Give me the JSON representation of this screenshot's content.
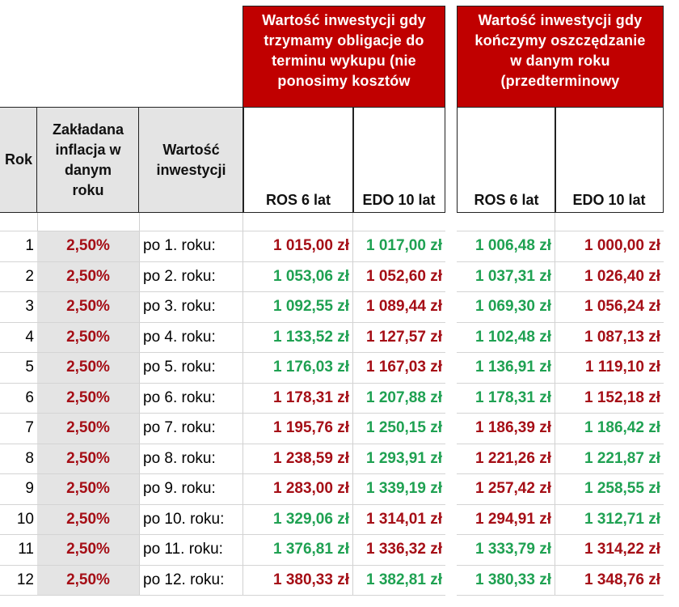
{
  "colors": {
    "header_red": "#c00000",
    "value_red": "#a50e16",
    "value_green": "#1fa152",
    "header_grey": "#e4e4e4"
  },
  "groups": [
    {
      "title": "Wartość inwestycji gdy trzymamy obligacje  do terminu wykupu (nie ponosimy kosztów",
      "lines": [
        "Wartość inwestycji gdy",
        "trzymamy obligacje  do",
        "terminu wykupu (nie",
        "ponosimy kosztów"
      ]
    },
    {
      "title": "Wartość inwestycji gdy kończymy oszczędzanie w danym roku (przedterminowy",
      "lines": [
        "Wartość inwestycji gdy",
        "kończymy oszczędzanie",
        "w danym roku",
        "(przedterminowy"
      ]
    }
  ],
  "headers": {
    "rok": "Rok",
    "inflacja": [
      "Zakładana",
      "inflacja w",
      "danym",
      "roku"
    ],
    "wartosc": [
      "Wartość",
      "inwestycji"
    ],
    "ros1": "ROS 6 lat",
    "edo1": "EDO 10 lat",
    "ros2": "ROS 6 lat",
    "edo2": "EDO 10 lat"
  },
  "rows": [
    {
      "rok": "1",
      "inflacja": "2,50%",
      "label": "po 1. roku:",
      "ros1": {
        "v": "1 015,00 zł",
        "c": "red"
      },
      "edo1": {
        "v": "1 017,00 zł",
        "c": "green"
      },
      "ros2": {
        "v": "1 006,48 zł",
        "c": "green"
      },
      "edo2": {
        "v": "1 000,00 zł",
        "c": "red"
      }
    },
    {
      "rok": "2",
      "inflacja": "2,50%",
      "label": "po 2. roku:",
      "ros1": {
        "v": "1 053,06 zł",
        "c": "green"
      },
      "edo1": {
        "v": "1 052,60 zł",
        "c": "red"
      },
      "ros2": {
        "v": "1 037,31 zł",
        "c": "green"
      },
      "edo2": {
        "v": "1 026,40 zł",
        "c": "red"
      }
    },
    {
      "rok": "3",
      "inflacja": "2,50%",
      "label": "po 3. roku:",
      "ros1": {
        "v": "1 092,55 zł",
        "c": "green"
      },
      "edo1": {
        "v": "1 089,44 zł",
        "c": "red"
      },
      "ros2": {
        "v": "1 069,30 zł",
        "c": "green"
      },
      "edo2": {
        "v": "1 056,24 zł",
        "c": "red"
      }
    },
    {
      "rok": "4",
      "inflacja": "2,50%",
      "label": "po 4. roku:",
      "ros1": {
        "v": "1 133,52 zł",
        "c": "green"
      },
      "edo1": {
        "v": "1 127,57 zł",
        "c": "red"
      },
      "ros2": {
        "v": "1 102,48 zł",
        "c": "green"
      },
      "edo2": {
        "v": "1 087,13 zł",
        "c": "red"
      }
    },
    {
      "rok": "5",
      "inflacja": "2,50%",
      "label": "po 5. roku:",
      "ros1": {
        "v": "1 176,03 zł",
        "c": "green"
      },
      "edo1": {
        "v": "1 167,03 zł",
        "c": "red"
      },
      "ros2": {
        "v": "1 136,91 zł",
        "c": "green"
      },
      "edo2": {
        "v": "1 119,10 zł",
        "c": "red"
      }
    },
    {
      "rok": "6",
      "inflacja": "2,50%",
      "label": "po 6. roku:",
      "ros1": {
        "v": "1 178,31 zł",
        "c": "red"
      },
      "edo1": {
        "v": "1 207,88 zł",
        "c": "green"
      },
      "ros2": {
        "v": "1 178,31 zł",
        "c": "green"
      },
      "edo2": {
        "v": "1 152,18 zł",
        "c": "red"
      }
    },
    {
      "rok": "7",
      "inflacja": "2,50%",
      "label": "po 7. roku:",
      "ros1": {
        "v": "1 195,76 zł",
        "c": "red"
      },
      "edo1": {
        "v": "1 250,15 zł",
        "c": "green"
      },
      "ros2": {
        "v": "1 186,39 zł",
        "c": "red"
      },
      "edo2": {
        "v": "1 186,42 zł",
        "c": "green"
      }
    },
    {
      "rok": "8",
      "inflacja": "2,50%",
      "label": "po 8. roku:",
      "ros1": {
        "v": "1 238,59 zł",
        "c": "red"
      },
      "edo1": {
        "v": "1 293,91 zł",
        "c": "green"
      },
      "ros2": {
        "v": "1 221,26 zł",
        "c": "red"
      },
      "edo2": {
        "v": "1 221,87 zł",
        "c": "green"
      }
    },
    {
      "rok": "9",
      "inflacja": "2,50%",
      "label": "po 9. roku:",
      "ros1": {
        "v": "1 283,00 zł",
        "c": "red"
      },
      "edo1": {
        "v": "1 339,19 zł",
        "c": "green"
      },
      "ros2": {
        "v": "1 257,42 zł",
        "c": "red"
      },
      "edo2": {
        "v": "1 258,55 zł",
        "c": "green"
      }
    },
    {
      "rok": "10",
      "inflacja": "2,50%",
      "label": "po 10. roku:",
      "ros1": {
        "v": "1 329,06 zł",
        "c": "green"
      },
      "edo1": {
        "v": "1 314,01 zł",
        "c": "red"
      },
      "ros2": {
        "v": "1 294,91 zł",
        "c": "red"
      },
      "edo2": {
        "v": "1 312,71 zł",
        "c": "green"
      }
    },
    {
      "rok": "11",
      "inflacja": "2,50%",
      "label": "po 11. roku:",
      "ros1": {
        "v": "1 376,81 zł",
        "c": "green"
      },
      "edo1": {
        "v": "1 336,32 zł",
        "c": "red"
      },
      "ros2": {
        "v": "1 333,79 zł",
        "c": "green"
      },
      "edo2": {
        "v": "1 314,22 zł",
        "c": "red"
      }
    },
    {
      "rok": "12",
      "inflacja": "2,50%",
      "label": "po 12. roku:",
      "ros1": {
        "v": "1 380,33 zł",
        "c": "red"
      },
      "edo1": {
        "v": "1 382,81 zł",
        "c": "green"
      },
      "ros2": {
        "v": "1 380,33 zł",
        "c": "green"
      },
      "edo2": {
        "v": "1 348,76 zł",
        "c": "red"
      }
    }
  ]
}
